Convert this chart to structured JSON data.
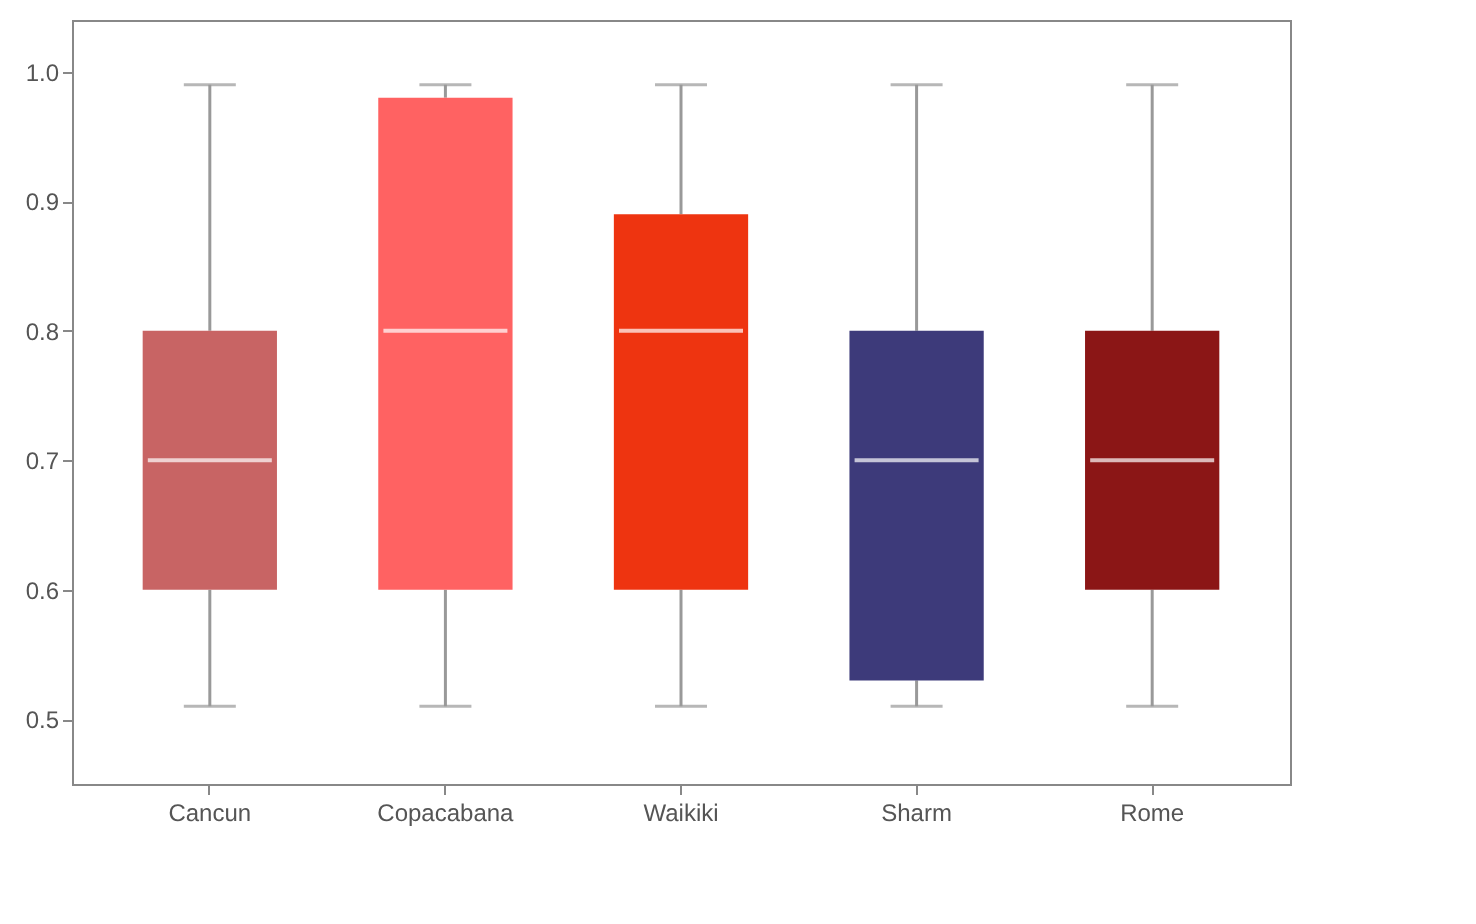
{
  "chart_data": {
    "type": "box",
    "categories": [
      "Cancun",
      "Copacabana",
      "Waikiki",
      "Sharm",
      "Rome"
    ],
    "colors": [
      "#c86464",
      "#ff6262",
      "#ee3410",
      "#3d3a7a",
      "#8b1616"
    ],
    "boxes": [
      {
        "low": 0.51,
        "q1": 0.6,
        "median": 0.7,
        "q3": 0.8,
        "high": 0.99
      },
      {
        "low": 0.51,
        "q1": 0.6,
        "median": 0.8,
        "q3": 0.98,
        "high": 0.99
      },
      {
        "low": 0.51,
        "q1": 0.6,
        "median": 0.8,
        "q3": 0.89,
        "high": 0.99
      },
      {
        "low": 0.51,
        "q1": 0.53,
        "median": 0.7,
        "q3": 0.8,
        "high": 0.99
      },
      {
        "low": 0.51,
        "q1": 0.6,
        "median": 0.7,
        "q3": 0.8,
        "high": 0.99
      }
    ],
    "ylim": [
      0.45,
      1.04
    ],
    "yticks": [
      0.5,
      0.6,
      0.7,
      0.8,
      0.9,
      {
        "value": 1,
        "label": "1.0"
      }
    ],
    "grid": false
  }
}
